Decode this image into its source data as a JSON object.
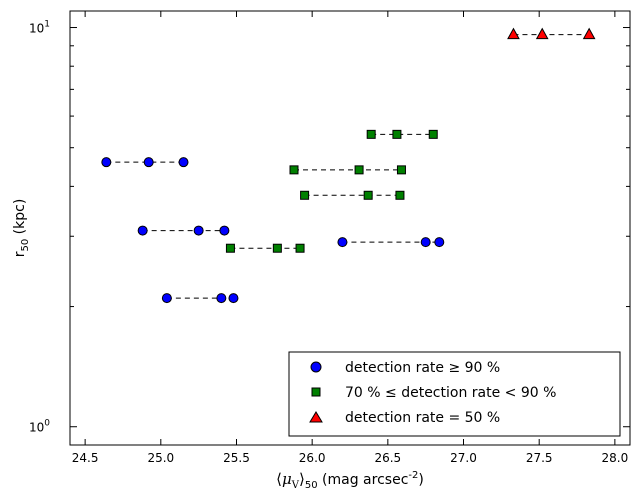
{
  "chart_data": {
    "type": "scatter",
    "title": "",
    "xlabel": "⟨μ_V⟩_50 (mag arcsec^-2)",
    "ylabel": "r_50 (kpc)",
    "xlim": [
      24.4,
      28.1
    ],
    "ylim": [
      0.9,
      11.0
    ],
    "yscale": "log",
    "x_ticks": [
      "24.5",
      "25.0",
      "25.5",
      "26.0",
      "26.5",
      "27.0",
      "27.5",
      "28.0"
    ],
    "x_tick_values": [
      24.5,
      25.0,
      25.5,
      26.0,
      26.5,
      27.0,
      27.5,
      28.0
    ],
    "y_ticks": [
      {
        "value": 1,
        "base": "10",
        "exp": "0"
      },
      {
        "value": 10,
        "base": "10",
        "exp": "1"
      }
    ],
    "grid": false,
    "legend_position": "bottom-right",
    "series": [
      {
        "name": "detection rate ≥ 90 %",
        "marker": "circle",
        "color": "#0000ff",
        "groups": [
          {
            "r": 4.6,
            "x": [
              24.64,
              24.92,
              25.15
            ]
          },
          {
            "r": 3.1,
            "x": [
              24.88,
              25.25,
              25.42
            ]
          },
          {
            "r": 2.1,
            "x": [
              25.04,
              25.4,
              25.48
            ]
          },
          {
            "r": 2.9,
            "x": [
              26.2,
              26.75,
              26.84
            ]
          }
        ]
      },
      {
        "name": "70 % ≤ detection rate < 90 %",
        "marker": "square",
        "color": "#008000",
        "groups": [
          {
            "r": 5.4,
            "x": [
              26.39,
              26.56,
              26.8
            ]
          },
          {
            "r": 4.4,
            "x": [
              25.88,
              26.31,
              26.59
            ]
          },
          {
            "r": 3.8,
            "x": [
              25.95,
              26.37,
              26.58
            ]
          },
          {
            "r": 2.8,
            "x": [
              25.46,
              25.77,
              25.92
            ]
          }
        ]
      },
      {
        "name": "detection rate = 50 %",
        "marker": "triangle",
        "color": "#ff0000",
        "groups": [
          {
            "r": 9.6,
            "x": [
              27.33,
              27.52,
              27.83
            ]
          }
        ]
      }
    ]
  }
}
